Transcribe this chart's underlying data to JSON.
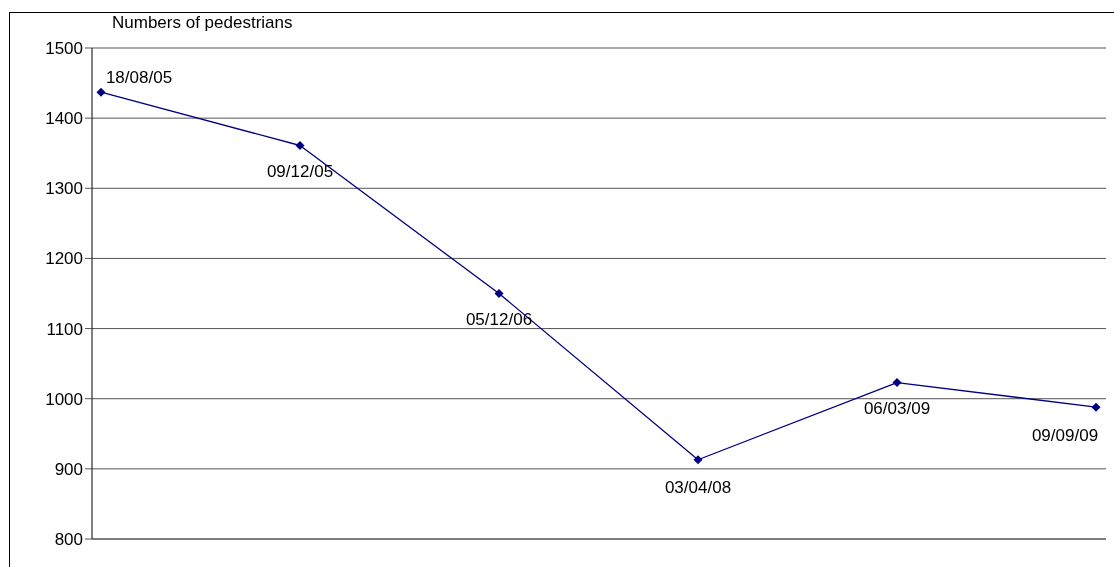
{
  "chart_data": {
    "type": "line",
    "ylabel": "Numbers of pedestrians",
    "categories": [
      null,
      null,
      null,
      null,
      null,
      null
    ],
    "series": [
      {
        "color": "#000080",
        "values": [
          1437,
          1361,
          1150,
          913,
          1023,
          988
        ]
      }
    ],
    "ylim": [
      800,
      1500
    ],
    "yticks": [
      800,
      900,
      1000,
      1100,
      1200,
      1300,
      1400,
      1500
    ],
    "grid": "y",
    "tick_labels": "y",
    "marker": "diamond",
    "line_style": "solid",
    "annotations": [
      "18/08/05",
      "09/12/05",
      "05/12/06",
      "03/04/08",
      "06/03/09",
      "09/09/09"
    ]
  }
}
